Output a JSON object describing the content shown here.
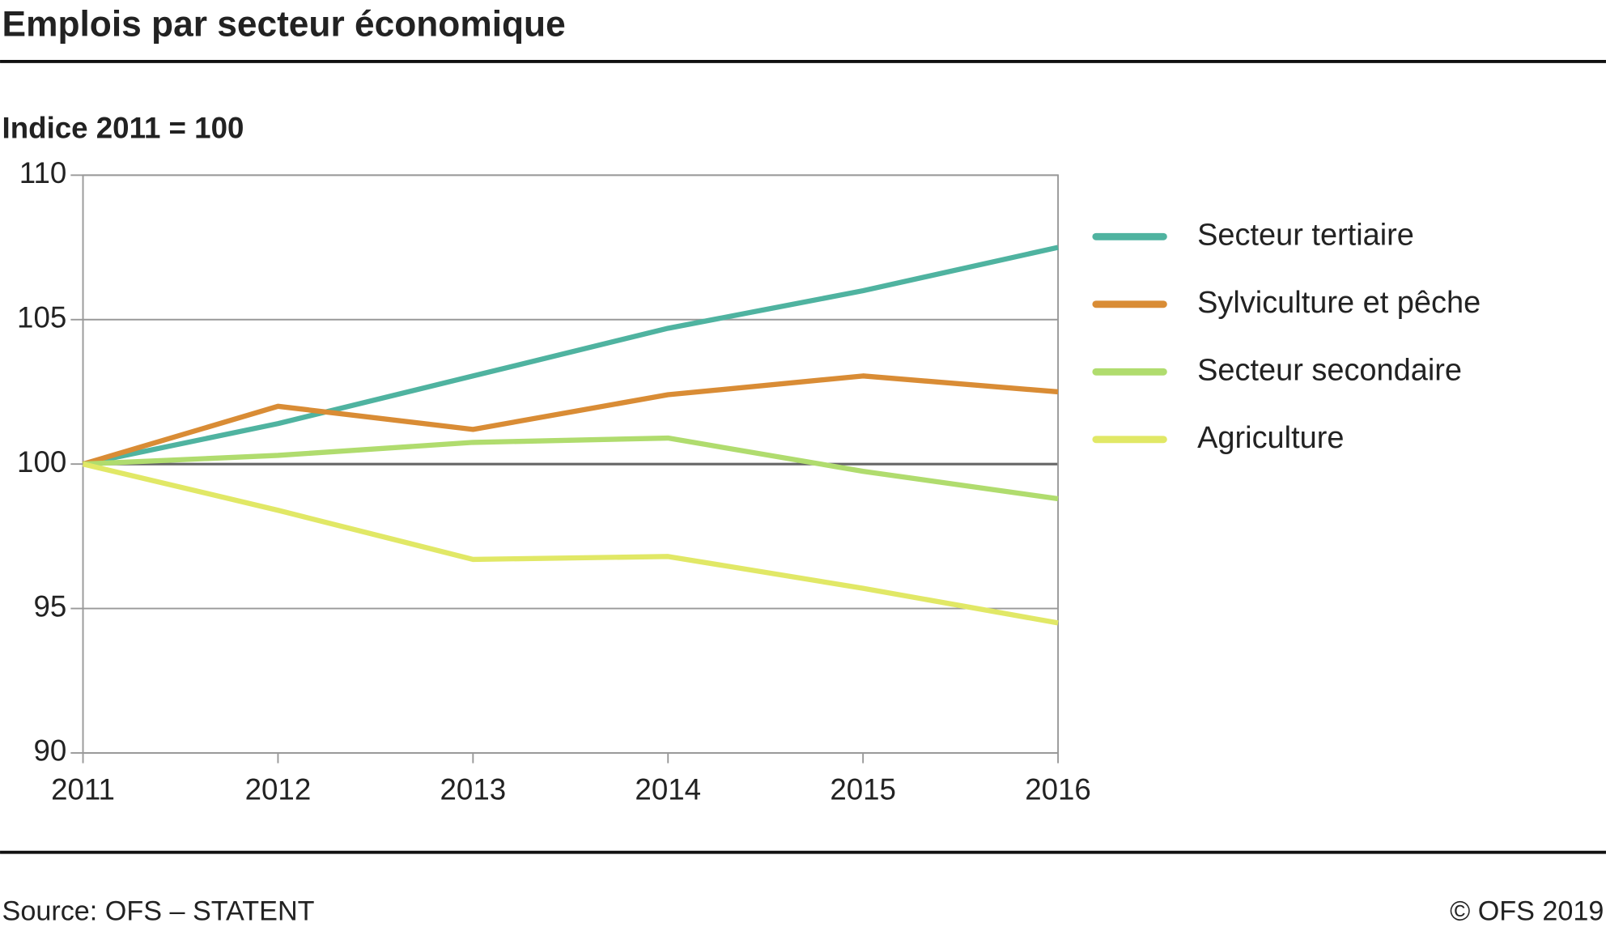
{
  "chart_data": {
    "type": "line",
    "title": "Emplois par secteur économique",
    "subtitle": "Indice 2011 = 100",
    "source": "Source: OFS – STATENT",
    "copyright": "© OFS  2019",
    "x": [
      2011,
      2012,
      2013,
      2014,
      2015,
      2016
    ],
    "xlim": [
      2011,
      2016
    ],
    "xticks": [
      2011,
      2012,
      2013,
      2014,
      2015,
      2016
    ],
    "ylim": [
      90,
      110
    ],
    "yticks": [
      90,
      95,
      100,
      105,
      110
    ],
    "grid": true,
    "reference_line": 100,
    "legend": "right",
    "series": [
      {
        "name": "Secteur tertiaire",
        "color": "#4fb3a0",
        "values": [
          100,
          101.4,
          103.05,
          104.7,
          106.0,
          107.5
        ]
      },
      {
        "name": "Sylviculture et pêche",
        "color": "#d98c35",
        "values": [
          100,
          102.0,
          101.2,
          102.4,
          103.05,
          102.5
        ]
      },
      {
        "name": "Secteur secondaire",
        "color": "#b0dc6e",
        "values": [
          100,
          100.3,
          100.75,
          100.9,
          99.75,
          98.8
        ]
      },
      {
        "name": "Agriculture",
        "color": "#e1e866",
        "values": [
          100,
          98.4,
          96.7,
          96.8,
          95.7,
          94.5
        ]
      }
    ]
  }
}
